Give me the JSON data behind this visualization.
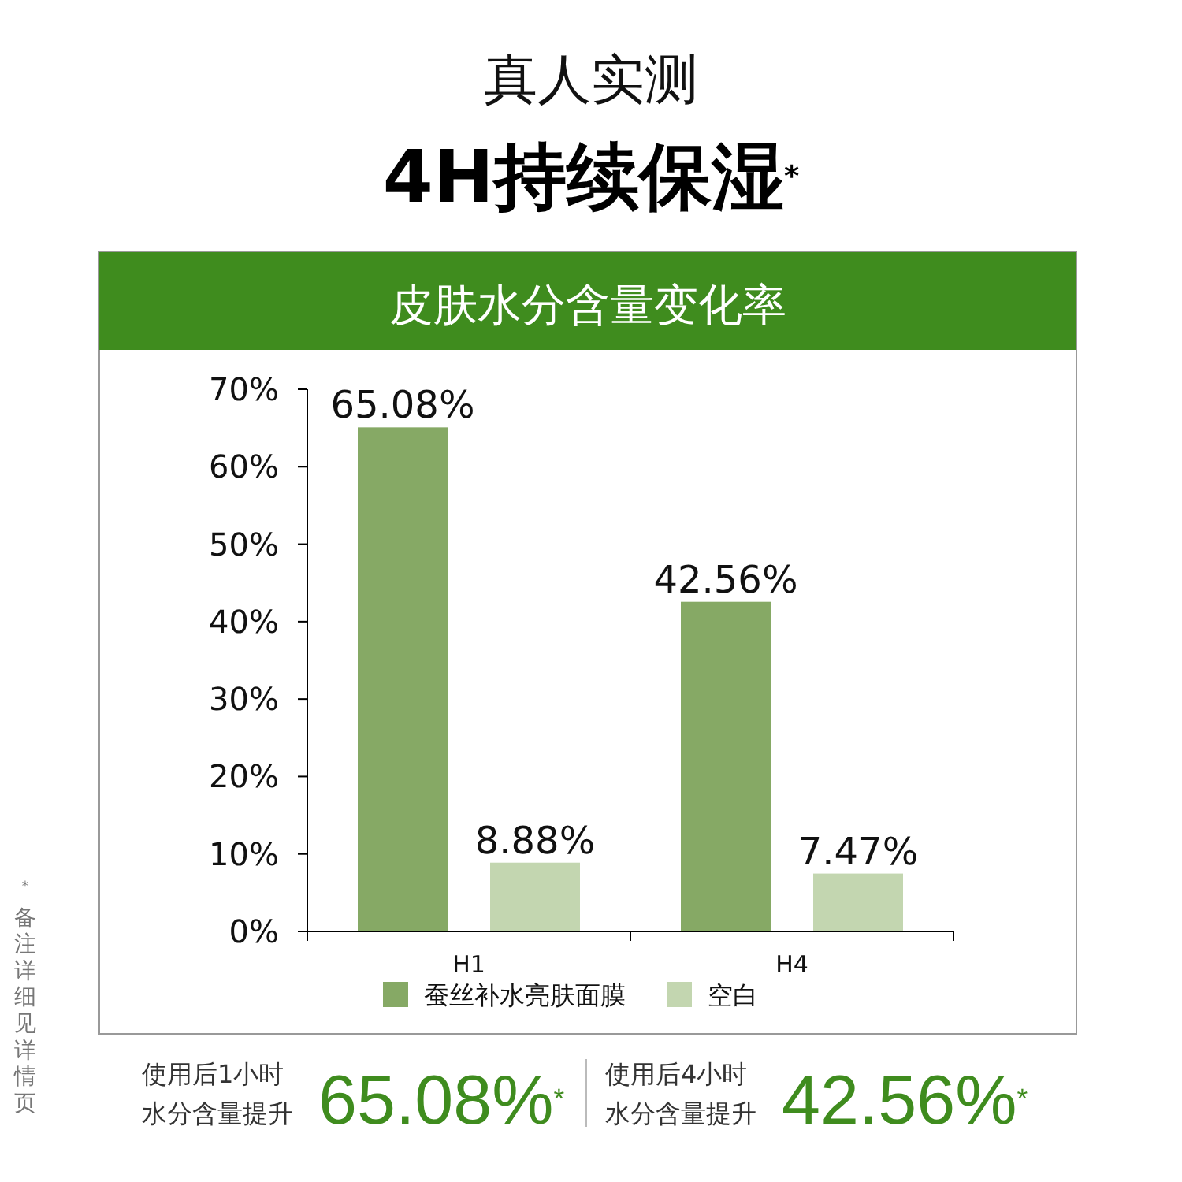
{
  "chart_data": {
    "type": "bar",
    "title": "皮肤水分含量变化率",
    "categories": [
      "H1",
      "H4"
    ],
    "series": [
      {
        "name": "蚕丝补水亮肤面膜",
        "color": "#86a965",
        "values": [
          65.08,
          42.56
        ],
        "value_labels": [
          "65.08%",
          "42.56%"
        ]
      },
      {
        "name": "空白",
        "color": "#c3d6b0",
        "values": [
          8.88,
          7.47
        ],
        "value_labels": [
          "8.88%",
          "7.47%"
        ]
      }
    ],
    "ylim": [
      0,
      70
    ],
    "yticks": [
      {
        "value": 0,
        "label": "0%"
      },
      {
        "value": 10,
        "label": "10%"
      },
      {
        "value": 20,
        "label": "20%"
      },
      {
        "value": 30,
        "label": "30%"
      },
      {
        "value": 40,
        "label": "40%"
      },
      {
        "value": 50,
        "label": "50%"
      },
      {
        "value": 60,
        "label": "60%"
      },
      {
        "value": 70,
        "label": "70%"
      }
    ],
    "grid": false,
    "legend": "bottom",
    "annotations": [
      "真人实测",
      "4H持续保湿$^{*}$",
      "$^{*}$备注详细见详情页",
      "使用后1小时",
      "水分含量提升",
      "65.08%$^{*}$",
      "使用后4小时",
      "水分含量提升",
      "42.56%$^{*}$"
    ]
  }
}
